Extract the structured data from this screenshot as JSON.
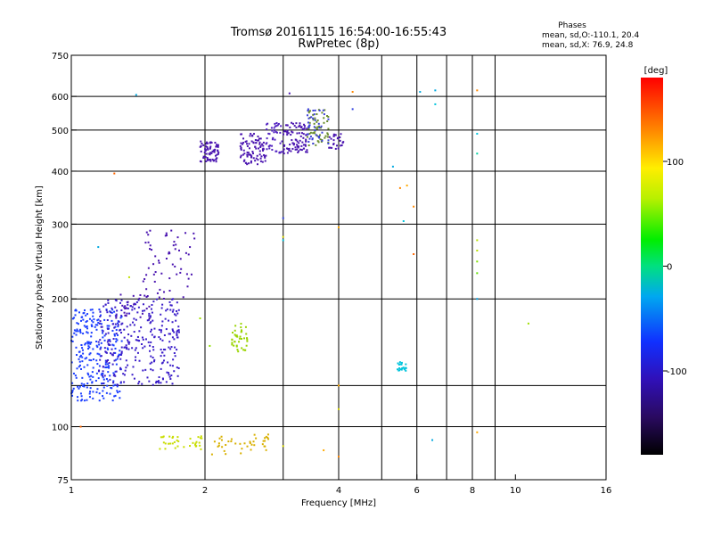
{
  "chart_data": {
    "type": "scatter",
    "title": "Tromsø 20161115 16:54:00-16:55:43",
    "subtitle": "RwPretec (8p)",
    "stats": {
      "heading": "Phases",
      "line1": "mean, sd,O:-110.1, 20.4",
      "line2": "mean, sd,X:  76.9, 24.8"
    },
    "xlabel": "Frequency [MHz]",
    "ylabel": "Stationary phase Virtual Height [km]",
    "x_scale": "log2",
    "y_scale": "log",
    "xlim": [
      1,
      16
    ],
    "ylim": [
      75,
      750
    ],
    "x_ticks": [
      1,
      2,
      4,
      6,
      8,
      10,
      16
    ],
    "x_tick_labels": [
      "1",
      "2",
      "4",
      "6",
      "8",
      "10",
      "16"
    ],
    "y_ticks": [
      75,
      100,
      200,
      300,
      400,
      500,
      600,
      750
    ],
    "y_tick_labels": [
      "75",
      "100",
      "200",
      "300",
      "400",
      "500",
      "600",
      "750"
    ],
    "x_grid": [
      2,
      4,
      6,
      8
    ],
    "x_minor_grid": [
      3,
      5,
      7,
      9
    ],
    "y_grid": [
      100,
      200,
      300,
      400,
      500,
      600
    ],
    "y_minor_grid": [
      125
    ],
    "grid": true,
    "colorbar": {
      "label": "[deg]",
      "range": [
        -180,
        180
      ],
      "ticks": [
        100,
        0,
        -100
      ],
      "tick_labels": [
        "100",
        "0",
        "-100"
      ]
    },
    "clusters": [
      {
        "x_range": [
          1.0,
          1.3
        ],
        "y_range": [
          115,
          190
        ],
        "color": "#1a3dff",
        "count": 260
      },
      {
        "x_range": [
          1.15,
          1.75
        ],
        "y_range": [
          125,
          200
        ],
        "color": "#3b1ec9",
        "count": 300
      },
      {
        "x_range": [
          1.25,
          1.5
        ],
        "y_range": [
          180,
          205
        ],
        "color": "#4a14b0",
        "count": 25
      },
      {
        "x_range": [
          1.45,
          1.9
        ],
        "y_range": [
          200,
          290
        ],
        "color": "#4a14b0",
        "count": 60
      },
      {
        "x_range": [
          1.95,
          2.15
        ],
        "y_range": [
          420,
          470
        ],
        "color": "#4a14b0",
        "count": 70
      },
      {
        "x_range": [
          2.4,
          2.75
        ],
        "y_range": [
          415,
          490
        ],
        "color": "#4a14b0",
        "count": 90
      },
      {
        "x_range": [
          2.75,
          3.0
        ],
        "y_range": [
          440,
          520
        ],
        "color": "#5020c0",
        "count": 40
      },
      {
        "x_range": [
          3.0,
          3.4
        ],
        "y_range": [
          440,
          520
        ],
        "color": "#4a14b0",
        "count": 90
      },
      {
        "x_range": [
          3.4,
          3.8
        ],
        "y_range": [
          460,
          560
        ],
        "color": "#6a8d2c",
        "count": 50
      },
      {
        "x_range": [
          3.4,
          3.8
        ],
        "y_range": [
          460,
          560
        ],
        "color": "#3b3fd8",
        "count": 40
      },
      {
        "x_range": [
          3.8,
          4.1
        ],
        "y_range": [
          450,
          490
        ],
        "color": "#4a14b0",
        "count": 25
      },
      {
        "x_range": [
          2.3,
          2.5
        ],
        "y_range": [
          150,
          175
        ],
        "color": "#9ad400",
        "count": 40
      },
      {
        "x_range": [
          1.55,
          2.0
        ],
        "y_range": [
          88,
          95
        ],
        "color": "#c8dd00",
        "count": 35
      },
      {
        "x_range": [
          2.0,
          2.8
        ],
        "y_range": [
          86,
          96
        ],
        "color": "#d8b000",
        "count": 40
      },
      {
        "x_range": [
          5.4,
          5.7
        ],
        "y_range": [
          135,
          142
        ],
        "color": "#00c4dc",
        "count": 20
      }
    ],
    "isolated_points": [
      {
        "x": 4.3,
        "y": 615,
        "color": "#ff8800"
      },
      {
        "x": 6.1,
        "y": 615,
        "color": "#00a8e0"
      },
      {
        "x": 6.6,
        "y": 620,
        "color": "#00a8e0"
      },
      {
        "x": 6.6,
        "y": 575,
        "color": "#00c4dc"
      },
      {
        "x": 8.2,
        "y": 620,
        "color": "#ff8800"
      },
      {
        "x": 8.2,
        "y": 490,
        "color": "#00c4dc"
      },
      {
        "x": 8.2,
        "y": 440,
        "color": "#00d0a0"
      },
      {
        "x": 8.2,
        "y": 275,
        "color": "#b8e000"
      },
      {
        "x": 8.2,
        "y": 260,
        "color": "#b8e000"
      },
      {
        "x": 8.2,
        "y": 245,
        "color": "#80e000"
      },
      {
        "x": 8.2,
        "y": 230,
        "color": "#60e000"
      },
      {
        "x": 8.2,
        "y": 200,
        "color": "#00a0e0"
      },
      {
        "x": 8.2,
        "y": 97,
        "color": "#ffaa00"
      },
      {
        "x": 10.7,
        "y": 175,
        "color": "#a0e000"
      },
      {
        "x": 5.3,
        "y": 410,
        "color": "#00a8e0"
      },
      {
        "x": 5.5,
        "y": 365,
        "color": "#ff8800"
      },
      {
        "x": 5.7,
        "y": 370,
        "color": "#ffaa00"
      },
      {
        "x": 5.9,
        "y": 330,
        "color": "#ff8800"
      },
      {
        "x": 5.6,
        "y": 305,
        "color": "#00c4dc"
      },
      {
        "x": 5.9,
        "y": 255,
        "color": "#ff6600"
      },
      {
        "x": 6.5,
        "y": 93,
        "color": "#00a8e0"
      },
      {
        "x": 4.0,
        "y": 295,
        "color": "#ffaa00"
      },
      {
        "x": 4.0,
        "y": 125,
        "color": "#ffaa00"
      },
      {
        "x": 4.0,
        "y": 110,
        "color": "#d8d800"
      },
      {
        "x": 4.0,
        "y": 85,
        "color": "#ff8800"
      },
      {
        "x": 4.3,
        "y": 560,
        "color": "#3040e0"
      },
      {
        "x": 3.1,
        "y": 610,
        "color": "#4a14b0"
      },
      {
        "x": 1.4,
        "y": 605,
        "color": "#00a8e0"
      },
      {
        "x": 1.25,
        "y": 395,
        "color": "#ff6600"
      },
      {
        "x": 3.0,
        "y": 310,
        "color": "#3040e0"
      },
      {
        "x": 3.0,
        "y": 275,
        "color": "#00c4dc"
      },
      {
        "x": 3.0,
        "y": 280,
        "color": "#d8d800"
      },
      {
        "x": 1.15,
        "y": 265,
        "color": "#00a8e0"
      },
      {
        "x": 1.05,
        "y": 100,
        "color": "#ff6600"
      },
      {
        "x": 1.35,
        "y": 225,
        "color": "#c0e000"
      },
      {
        "x": 1.95,
        "y": 180,
        "color": "#a0e000"
      },
      {
        "x": 2.05,
        "y": 155,
        "color": "#90e000"
      },
      {
        "x": 3.0,
        "y": 90,
        "color": "#d8d800"
      },
      {
        "x": 3.7,
        "y": 88,
        "color": "#ffaa00"
      }
    ]
  },
  "colors": {
    "background": "#ffffff",
    "axes": "#000000",
    "grid": "#000000"
  }
}
